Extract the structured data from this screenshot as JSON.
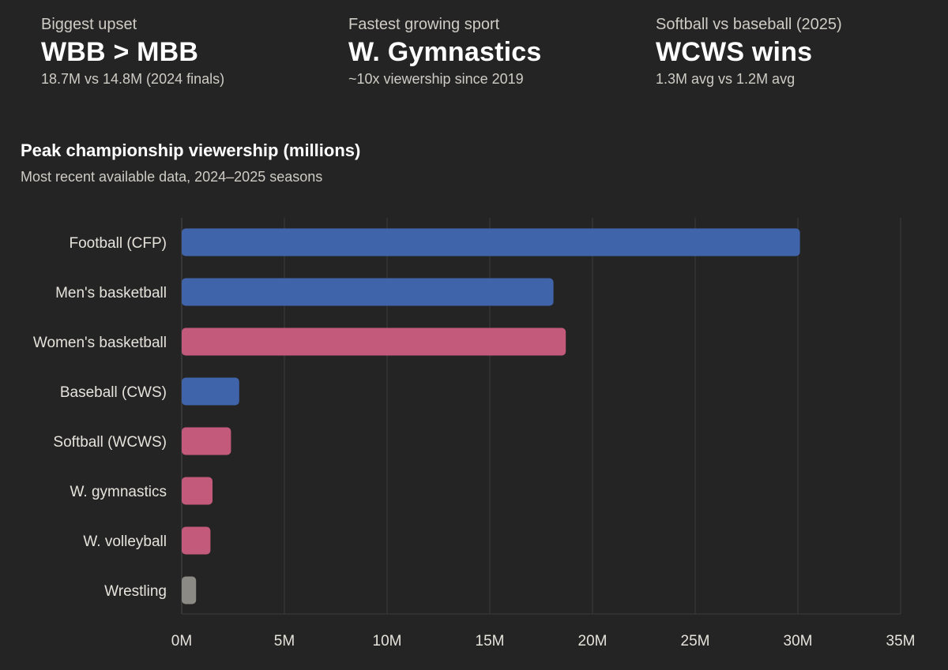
{
  "stats": [
    {
      "label": "Biggest upset",
      "value": "WBB > MBB",
      "sub": "18.7M vs 14.8M (2024 finals)"
    },
    {
      "label": "Fastest growing sport",
      "value": "W. Gymnastics",
      "sub": "~10x viewership since 2019"
    },
    {
      "label": "Softball vs baseball (2025)",
      "value": "WCWS wins",
      "sub": "1.3M avg vs 1.2M avg"
    }
  ],
  "chart_data": {
    "type": "bar",
    "orientation": "horizontal",
    "title": "Peak championship viewership (millions)",
    "subtitle": "Most recent available data, 2024–2025 seasons",
    "categories": [
      "Football (CFP)",
      "Men's basketball",
      "Women's basketball",
      "Baseball (CWS)",
      "Softball (WCWS)",
      "W. gymnastics",
      "W. volleyball",
      "Wrestling"
    ],
    "values": [
      30.1,
      18.1,
      18.7,
      2.8,
      2.4,
      1.5,
      1.4,
      0.7
    ],
    "groups": [
      "men",
      "men",
      "women",
      "men",
      "women",
      "women",
      "women",
      "other"
    ],
    "colors": {
      "men": "#3f64aa",
      "women": "#c45a7b",
      "other": "#8c8a84"
    },
    "xlim": [
      0,
      35
    ],
    "xticks": [
      0,
      5,
      10,
      15,
      20,
      25,
      30,
      35
    ],
    "xtick_labels": [
      "0M",
      "5M",
      "10M",
      "15M",
      "20M",
      "25M",
      "30M",
      "35M"
    ],
    "xlabel": "",
    "ylabel": "",
    "grid": true
  }
}
